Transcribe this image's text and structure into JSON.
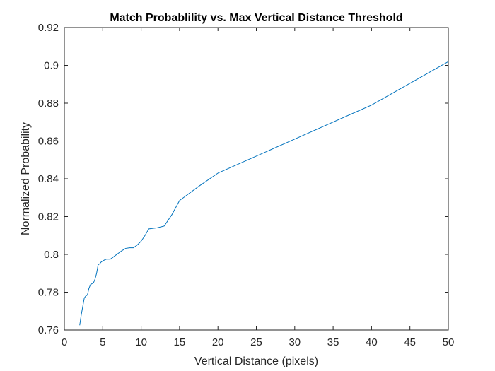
{
  "chart_data": {
    "type": "line",
    "title": "Match Probablility vs. Max Vertical Distance Threshold",
    "xlabel": "Vertical Distance (pixels)",
    "ylabel": "Normalized Probability",
    "xlim": [
      0,
      50
    ],
    "ylim": [
      0.76,
      0.92
    ],
    "xticks": [
      0,
      5,
      10,
      15,
      20,
      25,
      30,
      35,
      40,
      45,
      50
    ],
    "xtick_labels": [
      "0",
      "5",
      "10",
      "15",
      "20",
      "25",
      "30",
      "35",
      "40",
      "45",
      "50"
    ],
    "yticks": [
      0.76,
      0.78,
      0.8,
      0.82,
      0.84,
      0.86,
      0.88,
      0.9,
      0.92
    ],
    "ytick_labels": [
      "0.76",
      "0.78",
      "0.8",
      "0.82",
      "0.84",
      "0.86",
      "0.88",
      "0.9",
      "0.92"
    ],
    "grid": false,
    "series": [
      {
        "color": "#0072bd",
        "x": [
          2.0,
          2.2,
          2.4,
          2.6,
          2.8,
          3.0,
          3.2,
          3.4,
          3.6,
          3.8,
          4.0,
          4.2,
          4.4,
          4.6,
          4.8,
          5.0,
          5.2,
          5.5,
          6.0,
          6.5,
          7.0,
          7.5,
          8.0,
          8.5,
          9.0,
          9.5,
          10.0,
          10.5,
          11.0,
          12.0,
          13.0,
          14.0,
          15.0,
          17.5,
          20.0,
          30.0,
          40.0,
          45.0,
          50.0
        ],
        "y": [
          0.7625,
          0.768,
          0.7725,
          0.777,
          0.778,
          0.7785,
          0.782,
          0.784,
          0.7845,
          0.785,
          0.787,
          0.79,
          0.7945,
          0.795,
          0.796,
          0.7965,
          0.797,
          0.7975,
          0.7975,
          0.799,
          0.8005,
          0.802,
          0.8032,
          0.8035,
          0.8035,
          0.805,
          0.807,
          0.81,
          0.8135,
          0.814,
          0.815,
          0.821,
          0.8285,
          0.836,
          0.843,
          0.861,
          0.879,
          0.8905,
          0.902
        ]
      }
    ]
  }
}
